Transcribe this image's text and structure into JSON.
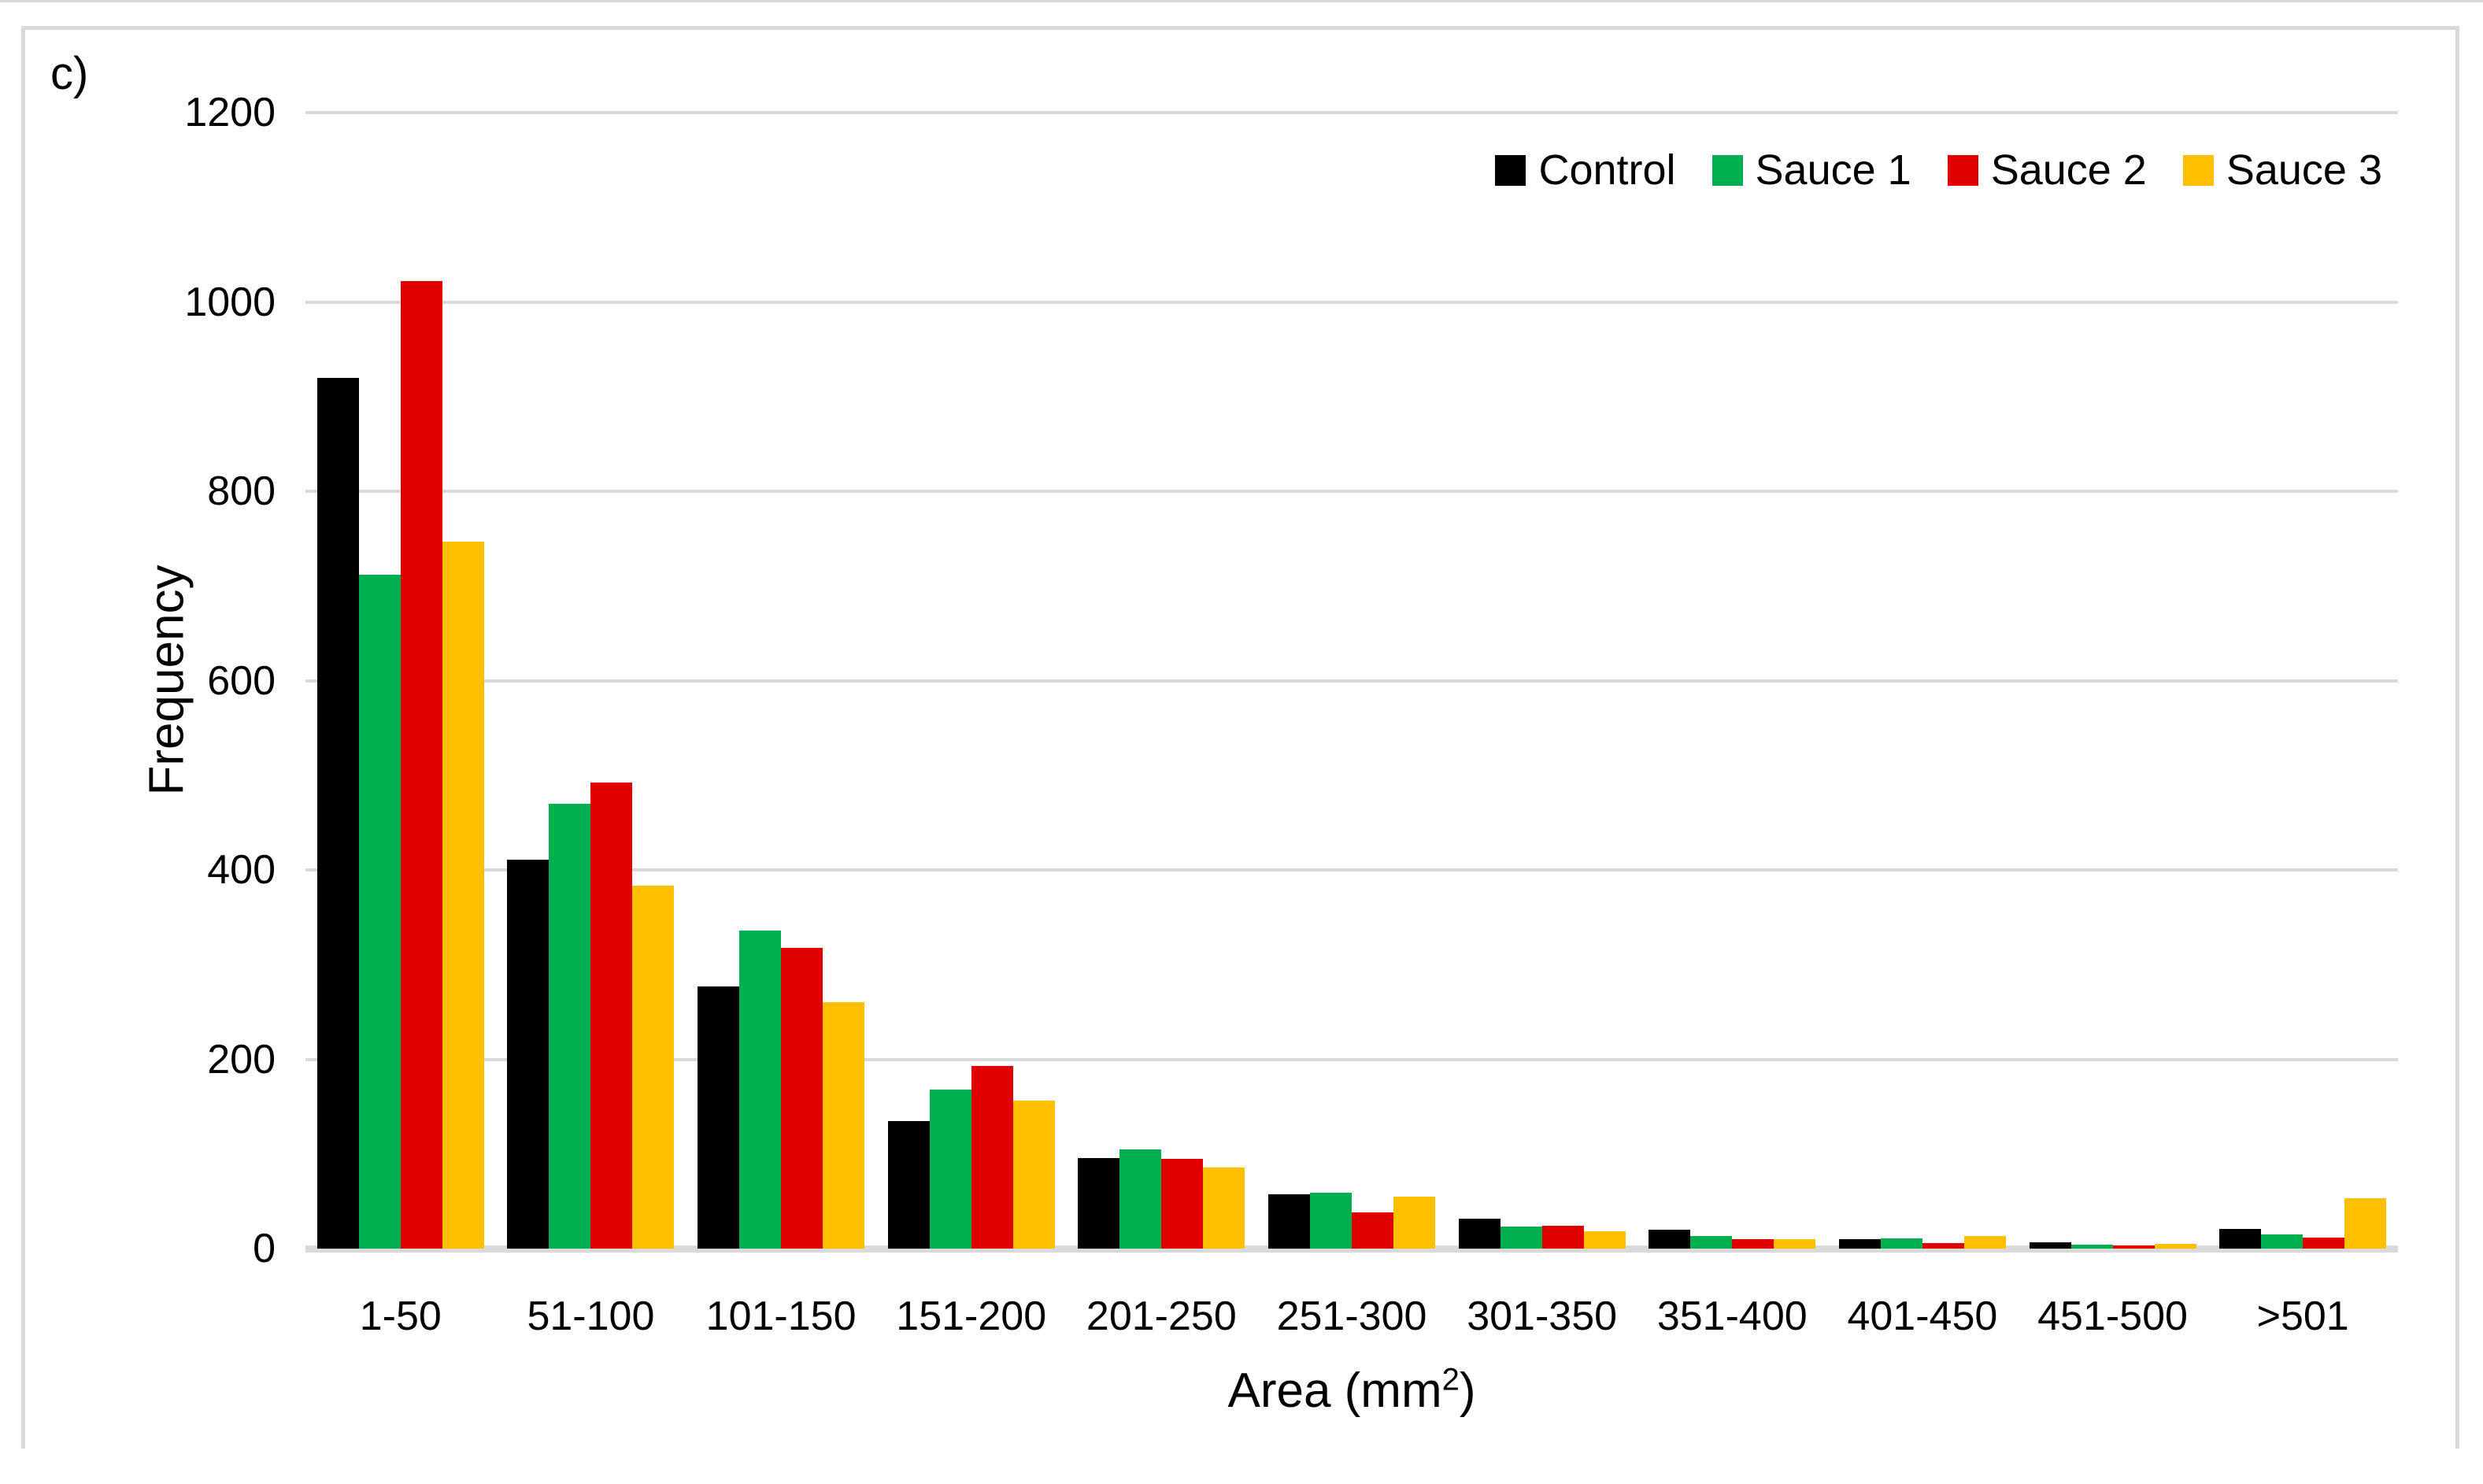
{
  "panel_label": "c)",
  "chart_data": {
    "type": "bar",
    "title": "",
    "categories": [
      "1-50",
      "51-100",
      "101-150",
      "151-200",
      "201-250",
      "251-300",
      "301-350",
      "351-400",
      "401-450",
      "451-500",
      ">501"
    ],
    "series": [
      {
        "name": "Control",
        "color": "#000000",
        "values": [
          920,
          411,
          277,
          135,
          96,
          57,
          32,
          20,
          10,
          7,
          21
        ]
      },
      {
        "name": "Sauce 1",
        "color": "#00B050",
        "values": [
          712,
          470,
          336,
          168,
          105,
          59,
          23,
          13,
          11,
          4,
          15
        ]
      },
      {
        "name": "Sauce 2",
        "color": "#E00000",
        "values": [
          1022,
          492,
          318,
          193,
          95,
          38,
          24,
          10,
          6,
          3,
          12
        ]
      },
      {
        "name": "Sauce 3",
        "color": "#FFC000",
        "values": [
          747,
          383,
          260,
          156,
          86,
          55,
          18,
          10,
          13,
          5,
          53
        ]
      }
    ],
    "xlabel_prefix": "Area (mm",
    "xlabel_sup": "2",
    "xlabel_suffix": ")",
    "ylabel": "Frequency",
    "ylim": [
      0,
      1200
    ],
    "yticks": [
      0,
      200,
      400,
      600,
      800,
      1000,
      1200
    ],
    "grid": true,
    "legend_position": "top-right",
    "gridline_color": "#D9D9D9",
    "axis_line_color": "#D9D9D9",
    "background_color": "#FFFFFF"
  }
}
